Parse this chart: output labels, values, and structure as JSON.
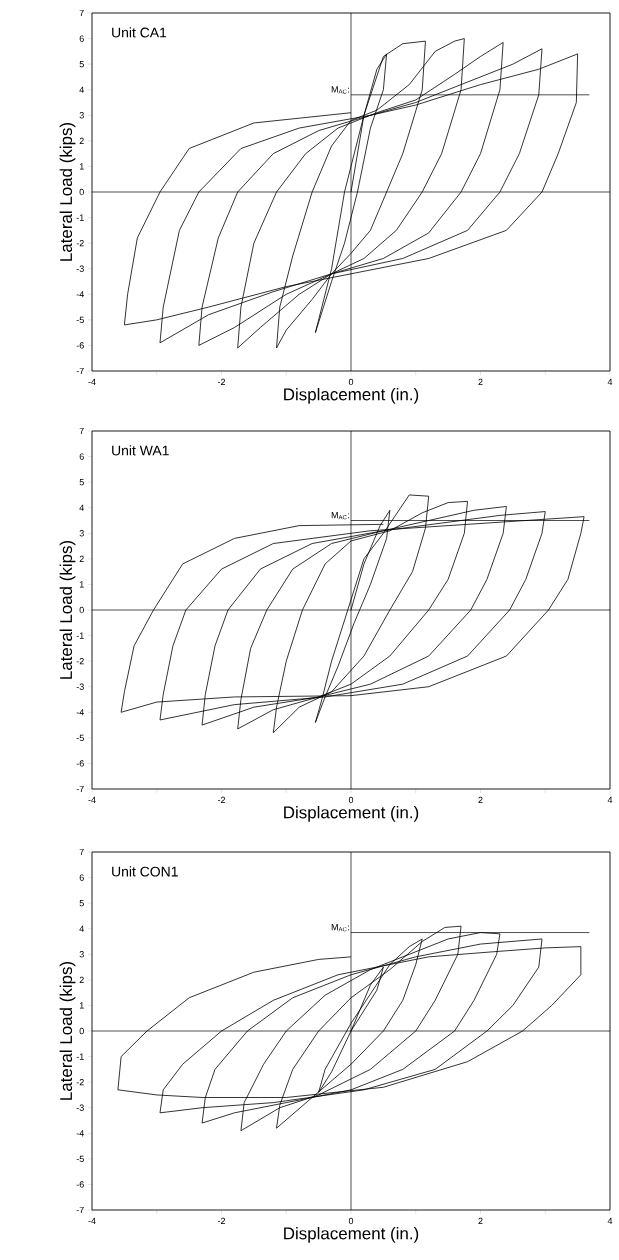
{
  "chart_data": [
    {
      "type": "line",
      "title": "Unit CA1",
      "xlabel": "Displacement (in.)",
      "ylabel": "Lateral Load (kips)",
      "color": "#000000",
      "x": [
        0,
        0.2,
        0.4,
        0.55,
        0.5,
        0.3,
        0.1,
        -0.1,
        -0.3,
        -0.55,
        -0.45,
        -0.3,
        -0.1,
        0.2,
        0.5,
        0.8,
        1.15,
        1.1,
        0.8,
        0.55,
        0.3,
        0,
        -0.3,
        -0.6,
        -1,
        -1.15,
        -1.1,
        -0.9,
        -0.6,
        -0.3,
        0,
        0.4,
        0.9,
        1.3,
        1.6,
        1.75,
        1.7,
        1.4,
        1.1,
        0.7,
        0.2,
        -0.3,
        -0.8,
        -1.4,
        -1.75,
        -1.7,
        -1.5,
        -1.15,
        -0.7,
        -0.2,
        0.4,
        1,
        1.6,
        2,
        2.35,
        2.3,
        2,
        1.7,
        1.2,
        0.5,
        -0.3,
        -1,
        -1.8,
        -2.35,
        -2.3,
        -2.05,
        -1.75,
        -1.2,
        -0.5,
        0.3,
        1,
        1.8,
        2.5,
        2.95,
        2.9,
        2.6,
        2.3,
        1.8,
        0.8,
        -0.3,
        -1.2,
        -2.2,
        -2.95,
        -2.9,
        -2.65,
        -2.35,
        -1.7,
        -0.8,
        0.3,
        1,
        2,
        2.9,
        3.5,
        3.48,
        3.2,
        2.95,
        2.4,
        1.2,
        0,
        -1,
        -2.2,
        -3,
        -3.5,
        -3.45,
        -3.3,
        -2.95,
        -2.5,
        -1.5,
        0
      ],
      "values": [
        0,
        3,
        4.8,
        5.4,
        4,
        2.5,
        0,
        -2,
        -3.5,
        -5.5,
        -4.5,
        -3,
        0,
        3,
        5.3,
        5.8,
        5.9,
        4,
        1.5,
        0,
        -1.5,
        -2.4,
        -3.2,
        -4.2,
        -5.4,
        -6.1,
        -4.5,
        -2.5,
        0,
        1.8,
        2.8,
        3.2,
        4.2,
        5.5,
        5.9,
        6,
        4,
        1.5,
        0,
        -1.5,
        -2.6,
        -3.2,
        -4,
        -5.3,
        -6.1,
        -4.5,
        -2,
        0,
        1.5,
        2.5,
        3.1,
        3.6,
        4.6,
        5.3,
        5.85,
        4,
        1.5,
        0,
        -1.6,
        -2.6,
        -3.2,
        -4,
        -5.3,
        -6,
        -4.5,
        -1.8,
        0,
        1.5,
        2.4,
        3,
        3.5,
        4.3,
        5,
        5.6,
        3.8,
        1.5,
        0,
        -1.5,
        -2.6,
        -3.2,
        -3.9,
        -4.8,
        -5.9,
        -4.5,
        -1.5,
        0,
        1.7,
        2.5,
        3,
        3.4,
        4.2,
        4.8,
        5.4,
        3.5,
        1.5,
        0,
        -1.5,
        -2.6,
        -3.2,
        -3.7,
        -4.5,
        -5,
        -5.2,
        -4,
        -1.8,
        0,
        1.7,
        2.7,
        3.1
      ],
      "xlim": [
        -4,
        4
      ],
      "ylim": [
        -7,
        7
      ],
      "xticks": [
        -4,
        {
          "value": -3,
          "label": null
        },
        -2,
        {
          "value": -1,
          "label": null
        },
        0,
        {
          "value": 1,
          "label": null
        },
        2,
        {
          "value": 3,
          "label": null
        },
        4
      ],
      "yticks": [
        -7,
        -6,
        -5,
        -4,
        -3,
        -2,
        -1,
        0,
        1,
        2,
        3,
        4,
        5,
        6,
        7
      ],
      "ref_lines": [
        {
          "axis": "y",
          "value": 0,
          "color": "#000000"
        },
        {
          "axis": "x",
          "value": 0,
          "color": "#000000"
        },
        {
          "axis": "y",
          "value": 3.8,
          "label": "M$_{AC}$:",
          "color": "#000000"
        }
      ]
    },
    {
      "type": "line",
      "title": "Unit WA1",
      "xlabel": "Displacement (in.)",
      "ylabel": "Lateral Load (kips)",
      "color": "#000000",
      "x": [
        0,
        0.2,
        0.45,
        0.6,
        0.55,
        0.3,
        0.05,
        -0.2,
        -0.4,
        -0.55,
        -0.45,
        -0.3,
        -0.05,
        0.2,
        0.5,
        0.9,
        1.2,
        1.15,
        0.95,
        0.6,
        0.2,
        -0.3,
        -0.8,
        -1.2,
        -1.15,
        -1,
        -0.75,
        -0.4,
        0,
        0.6,
        1.1,
        1.5,
        1.8,
        1.75,
        1.5,
        1.2,
        0.6,
        0,
        -0.5,
        -1.2,
        -1.75,
        -1.7,
        -1.55,
        -1.3,
        -0.9,
        -0.3,
        0.5,
        1.2,
        1.9,
        2.4,
        2.35,
        2.1,
        1.85,
        1.2,
        0.3,
        -0.5,
        -1.5,
        -2.3,
        -2.25,
        -2.1,
        -1.9,
        -1.4,
        -0.6,
        0.5,
        1.4,
        2.3,
        3,
        2.95,
        2.7,
        2.45,
        1.8,
        0.8,
        -0.4,
        -1.8,
        -2.95,
        -2.9,
        -2.75,
        -2.55,
        -2,
        -1.2,
        0.3,
        1.5,
        2.7,
        3.6,
        3.55,
        3.35,
        3.05,
        2.4,
        1.2,
        0,
        -1.8,
        -3,
        -3.55,
        -3.5,
        -3.35,
        -3.05,
        -2.6,
        -1.8,
        -0.8,
        0.5
      ],
      "values": [
        0,
        1.8,
        3.3,
        3.9,
        2.8,
        1,
        -0.5,
        -2.2,
        -3.4,
        -4.4,
        -3.5,
        -2,
        0,
        2,
        3,
        4.5,
        4.45,
        3.2,
        1.5,
        0,
        -1.8,
        -3.2,
        -3.8,
        -4.8,
        -3.8,
        -2,
        0,
        1.8,
        2.7,
        3.1,
        3.8,
        4.2,
        4.25,
        3,
        1.2,
        0,
        -1.8,
        -2.9,
        -3.4,
        -3.9,
        -4.65,
        -3.5,
        -1.5,
        0,
        1.6,
        2.6,
        3.1,
        3.5,
        3.9,
        4.05,
        3,
        1.2,
        0,
        -1.8,
        -2.9,
        -3.4,
        -3.8,
        -4.5,
        -3.3,
        -1.4,
        0,
        1.6,
        2.6,
        3.1,
        3.4,
        3.7,
        3.85,
        3,
        1.2,
        0,
        -1.8,
        -2.9,
        -3.4,
        -3.7,
        -4.3,
        -3.3,
        -1.4,
        0,
        1.6,
        2.6,
        3.1,
        3.3,
        3.5,
        3.65,
        3,
        1.2,
        0,
        -1.8,
        -3,
        -3.35,
        -3.4,
        -3.6,
        -4,
        -3.2,
        -1.4,
        0,
        1.8,
        2.8,
        3.3,
        3.35
      ],
      "xlim": [
        -4,
        4
      ],
      "ylim": [
        -7,
        7
      ],
      "xticks": [
        -4,
        {
          "value": -3,
          "label": null
        },
        -2,
        {
          "value": -1,
          "label": null
        },
        0,
        {
          "value": 1,
          "label": null
        },
        2,
        {
          "value": 3,
          "label": null
        },
        4
      ],
      "yticks": [
        -7,
        -6,
        -5,
        -4,
        -3,
        -2,
        -1,
        0,
        1,
        2,
        3,
        4,
        5,
        6,
        7
      ],
      "ref_lines": [
        {
          "axis": "y",
          "value": 0,
          "color": "#000000"
        },
        {
          "axis": "x",
          "value": 0,
          "color": "#000000"
        },
        {
          "axis": "y",
          "value": 3.5,
          "label": "M$_{AC}$:",
          "color": "#000000"
        }
      ]
    },
    {
      "type": "line",
      "title": "Unit CON1",
      "xlabel": "Displacement (in.)",
      "ylabel": "Lateral Load (kips)",
      "color": "#000000",
      "x": [
        0,
        0.3,
        0.5,
        0.4,
        0,
        -0.3,
        -0.5,
        -0.4,
        0,
        0.6,
        0.9,
        1.1,
        1,
        0.8,
        0.5,
        0,
        -0.6,
        -1.15,
        -1.1,
        -0.9,
        -0.5,
        0,
        0.6,
        1.1,
        1.45,
        1.7,
        1.65,
        1.3,
        1,
        0.3,
        -0.5,
        -1.1,
        -1.7,
        -1.65,
        -1.35,
        -1,
        -0.4,
        0.3,
        0.9,
        1.5,
        2,
        2.3,
        2.25,
        1.9,
        1.6,
        0.8,
        0,
        -1,
        -1.8,
        -2.3,
        -2.25,
        -2.1,
        -1.6,
        -0.9,
        0,
        1,
        2,
        2.95,
        2.9,
        2.5,
        2.1,
        1.3,
        0.2,
        -1.2,
        -2.3,
        -2.95,
        -2.9,
        -2.6,
        -2,
        -1.2,
        -0.2,
        1.2,
        2.2,
        3,
        3.55,
        3.55,
        3.1,
        2.65,
        1.8,
        0.5,
        -1,
        -2.3,
        -3,
        -3.6,
        -3.55,
        -3.15,
        -2.5,
        -1.5,
        -0.5,
        0
      ],
      "values": [
        0,
        1.8,
        2.5,
        1.6,
        0,
        -1.6,
        -2.4,
        -1.5,
        0.3,
        2.6,
        3.3,
        3.6,
        2.6,
        1.2,
        0,
        -1.3,
        -2.6,
        -3.8,
        -2.9,
        -1.5,
        0,
        1.3,
        2.4,
        3.5,
        4.05,
        4.1,
        3,
        1.2,
        0,
        -1.5,
        -2.5,
        -3,
        -3.9,
        -2.8,
        -1.3,
        0,
        1.4,
        2.4,
        3,
        3.6,
        3.85,
        3.8,
        3,
        1.2,
        0,
        -1.5,
        -2.3,
        -2.8,
        -3.2,
        -3.6,
        -2.6,
        -1.5,
        0,
        1.3,
        2.2,
        2.9,
        3.4,
        3.6,
        2.5,
        1,
        0,
        -1.5,
        -2.3,
        -2.8,
        -3,
        -3.2,
        -2.3,
        -1.3,
        0,
        1.2,
        2.2,
        2.9,
        3.1,
        3.25,
        3.3,
        2.2,
        1,
        0,
        -1.2,
        -2.2,
        -2.6,
        -2.6,
        -2.5,
        -2.3,
        -1,
        0,
        1.3,
        2.3,
        2.8,
        2.9
      ],
      "xlim": [
        -4,
        4
      ],
      "ylim": [
        -7,
        7
      ],
      "xticks": [
        -4,
        {
          "value": -3,
          "label": null
        },
        -2,
        {
          "value": -1,
          "label": null
        },
        0,
        {
          "value": 1,
          "label": null
        },
        2,
        {
          "value": 3,
          "label": null
        },
        4
      ],
      "yticks": [
        -7,
        -6,
        -5,
        -4,
        -3,
        -2,
        -1,
        0,
        1,
        2,
        3,
        4,
        5,
        6,
        7
      ],
      "ref_lines": [
        {
          "axis": "y",
          "value": 0,
          "color": "#000000"
        },
        {
          "axis": "x",
          "value": 0,
          "color": "#000000"
        },
        {
          "axis": "y",
          "value": 3.85,
          "label": "M$_{AC}$:",
          "color": "#000000"
        }
      ]
    }
  ]
}
